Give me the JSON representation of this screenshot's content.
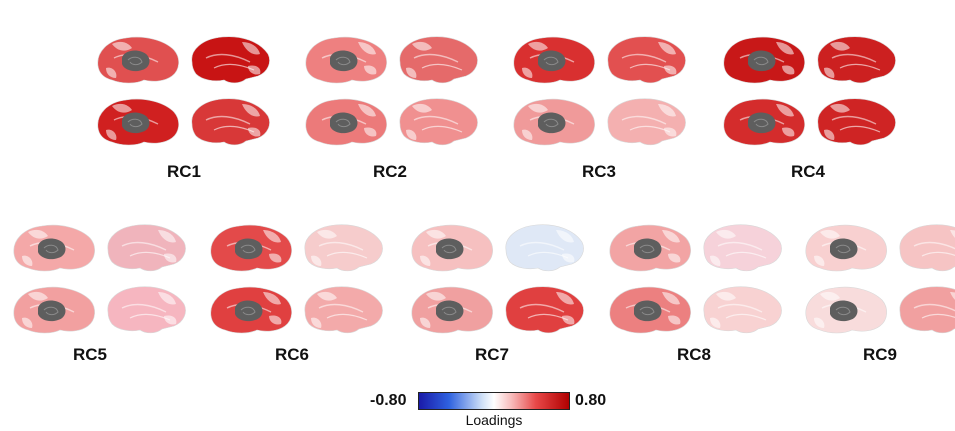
{
  "panels": [
    {
      "label": "RC1",
      "colors": [
        "#e05050",
        "#c81414",
        "#d02020",
        "#d83838"
      ]
    },
    {
      "label": "RC2",
      "colors": [
        "#ee8080",
        "#e56a6a",
        "#ec7a7a",
        "#f09090"
      ]
    },
    {
      "label": "RC3",
      "colors": [
        "#d93030",
        "#e25050",
        "#f09a9a",
        "#f4b0b0"
      ]
    },
    {
      "label": "RC4",
      "colors": [
        "#c81818",
        "#cc2020",
        "#d42c2c",
        "#cf2424"
      ]
    },
    {
      "label": "RC5",
      "colors": [
        "#f4a8a8",
        "#f0b4bc",
        "#f2a0a0",
        "#f6b6c0"
      ]
    },
    {
      "label": "RC6",
      "colors": [
        "#e34a4a",
        "#f6cccc",
        "#e04040",
        "#f3aaaa"
      ]
    },
    {
      "label": "RC7",
      "colors": [
        "#f6c0c0",
        "#dfe8f6",
        "#f0a0a0",
        "#e04040"
      ]
    },
    {
      "label": "RC8",
      "colors": [
        "#f2a4a4",
        "#f6d2da",
        "#ec8080",
        "#f8d2d2"
      ]
    },
    {
      "label": "RC9",
      "colors": [
        "#f8d0d0",
        "#f6c4c4",
        "#f8dcdc",
        "#f1a0a0"
      ]
    }
  ],
  "colorbar": {
    "min_label": "-0.80",
    "max_label": "0.80",
    "title": "Loadings",
    "low_color": "#1a1aa8",
    "high_color": "#b00000"
  }
}
